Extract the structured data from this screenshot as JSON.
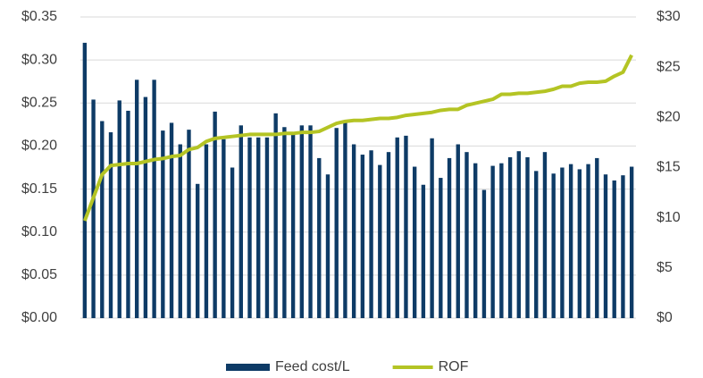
{
  "chart_data": {
    "type": "bar-line",
    "categories": [
      null,
      null,
      null,
      null,
      null,
      null,
      null,
      null,
      null,
      null,
      null,
      null,
      null,
      null,
      null,
      null,
      null,
      null,
      null,
      null,
      null,
      null,
      null,
      null,
      null,
      null,
      null,
      null,
      null,
      null,
      null,
      null,
      null,
      null,
      null,
      null,
      null,
      null,
      null,
      null,
      null,
      null,
      null,
      null,
      null,
      null,
      null,
      null,
      null,
      null,
      null,
      null,
      null,
      null,
      null,
      null,
      null,
      null,
      null,
      null,
      null,
      null,
      null,
      null
    ],
    "series": [
      {
        "name": "Feed cost/L",
        "type": "bar",
        "color": "#0e3b66",
        "values": [
          0.32,
          0.254,
          0.229,
          0.216,
          0.253,
          0.241,
          0.277,
          0.257,
          0.277,
          0.218,
          0.227,
          0.202,
          0.219,
          0.156,
          0.202,
          0.24,
          0.208,
          0.175,
          0.224,
          0.21,
          0.21,
          0.21,
          0.238,
          0.222,
          0.216,
          0.224,
          0.224,
          0.186,
          0.167,
          0.221,
          0.229,
          0.202,
          0.19,
          0.195,
          0.178,
          0.193,
          0.21,
          0.212,
          0.176,
          0.155,
          0.209,
          0.163,
          0.186,
          0.202,
          0.193,
          0.18,
          0.149,
          0.177,
          0.18,
          0.187,
          0.194,
          0.187,
          0.171,
          0.193,
          0.168,
          0.175,
          0.179,
          0.173,
          0.179,
          0.186,
          0.167,
          0.16,
          0.166,
          0.176
        ]
      },
      {
        "name": "ROF",
        "type": "line",
        "axis": "y2",
        "color": "#b4c424",
        "values": [
          9.7,
          12.0,
          14.3,
          15.2,
          15.3,
          15.4,
          15.4,
          15.6,
          15.8,
          15.9,
          16.1,
          16.2,
          16.8,
          17.0,
          17.6,
          17.9,
          18.0,
          18.1,
          18.2,
          18.3,
          18.3,
          18.3,
          18.3,
          18.4,
          18.4,
          18.5,
          18.5,
          18.6,
          19.0,
          19.4,
          19.6,
          19.7,
          19.7,
          19.8,
          19.9,
          19.9,
          20.0,
          20.2,
          20.3,
          20.4,
          20.5,
          20.7,
          20.8,
          20.8,
          21.2,
          21.4,
          21.6,
          21.8,
          22.3,
          22.3,
          22.4,
          22.4,
          22.5,
          22.6,
          22.8,
          23.1,
          23.1,
          23.4,
          23.5,
          23.5,
          23.6,
          24.1,
          24.5,
          26.2
        ]
      }
    ],
    "ylim": [
      0,
      0.35
    ],
    "yticks": [
      {
        "value": 0,
        "label": "$0.00"
      },
      {
        "value": 0.05,
        "label": "$0.05"
      },
      {
        "value": 0.1,
        "label": "$0.10"
      },
      {
        "value": 0.15,
        "label": "$0.15"
      },
      {
        "value": 0.2,
        "label": "$0.20"
      },
      {
        "value": 0.25,
        "label": "$0.25"
      },
      {
        "value": 0.3,
        "label": "$0.30"
      },
      {
        "value": 0.35,
        "label": "$0.35"
      }
    ],
    "y2lim": [
      0,
      30
    ],
    "y2ticks": [
      {
        "value": 0,
        "label": "$0"
      },
      {
        "value": 5,
        "label": "$5"
      },
      {
        "value": 10,
        "label": "$10"
      },
      {
        "value": 15,
        "label": "$15"
      },
      {
        "value": 20,
        "label": "$20"
      },
      {
        "value": 25,
        "label": "$25"
      },
      {
        "value": 30,
        "label": "$30"
      }
    ],
    "grid": true,
    "legend": "bottom"
  }
}
